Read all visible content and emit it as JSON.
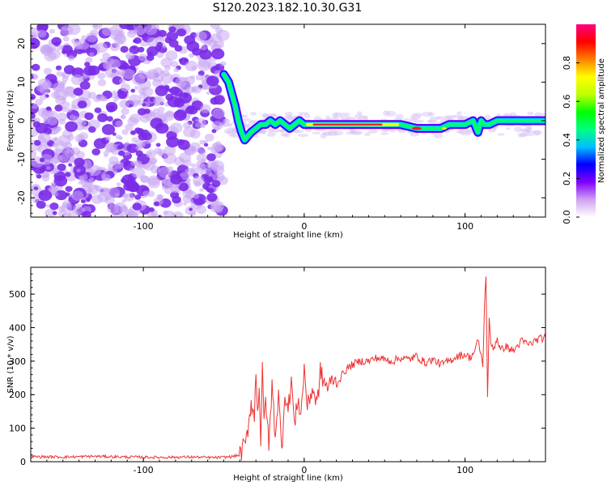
{
  "title": "S120.2023.182.10.30.G31",
  "chart_data": [
    {
      "type": "heatmap",
      "id": "spectrogram",
      "xlabel": "Height of straight line (km)",
      "ylabel": "Frequency (Hz)",
      "xlim": [
        -170,
        150
      ],
      "ylim": [
        -25,
        25
      ],
      "xticks": [
        -100,
        0,
        100
      ],
      "yticks": [
        -20,
        -10,
        0,
        10,
        20
      ],
      "ytick_labels": [
        "-20",
        "-10",
        "0",
        "10",
        "20"
      ],
      "grid": false,
      "colorbar": {
        "label": "Normalized spectral amplitude",
        "range": [
          0.0,
          1.0
        ],
        "ticks": [
          0.0,
          0.2,
          0.4,
          0.6,
          0.8
        ],
        "tick_labels": [
          "0.0",
          "0.2",
          "0.4",
          "0.6",
          "0.8"
        ],
        "colormap": [
          "#ffffff",
          "#d0a0f0",
          "#8000ff",
          "#0000ff",
          "#00c0ff",
          "#00ff80",
          "#00ff00",
          "#c0ff00",
          "#ffff00",
          "#ff8000",
          "#ff0000",
          "#ff0080"
        ]
      },
      "ridge": {
        "x": [
          -50,
          -47,
          -45,
          -43,
          -41,
          -39,
          -37,
          -35,
          -33,
          -30,
          -27,
          -24,
          -21,
          -18,
          -15,
          -12,
          -9,
          -6,
          -3,
          0,
          5,
          10,
          20,
          30,
          40,
          50,
          60,
          70,
          80,
          85,
          90,
          95,
          100,
          105,
          108,
          110,
          112,
          115,
          120,
          130,
          140,
          150
        ],
        "y": [
          12,
          10,
          7,
          4,
          0,
          -3,
          -5,
          -4,
          -3,
          -2,
          -1,
          -1,
          0,
          -1,
          0,
          -1,
          -2,
          -1,
          0,
          -1,
          -1,
          -1,
          -1,
          -1,
          -1,
          -1,
          -1,
          -2,
          -2,
          -2,
          -1,
          -1,
          -1,
          0,
          -3,
          0,
          -1,
          -1,
          0,
          0,
          0,
          0
        ],
        "peak_x": [
          0,
          60
        ]
      }
    },
    {
      "type": "line",
      "id": "snr",
      "xlabel": "Height of straight line (km)",
      "ylabel": "SNR (10 * v/v)",
      "xlim": [
        -170,
        150
      ],
      "ylim": [
        0,
        580
      ],
      "xticks": [
        -100,
        0,
        100
      ],
      "yticks": [
        0,
        100,
        200,
        300,
        400,
        500
      ],
      "grid": false,
      "series": [
        {
          "color": "#ee3333",
          "x": [
            -170,
            -150,
            -130,
            -110,
            -90,
            -70,
            -55,
            -45,
            -40,
            -36,
            -33,
            -31,
            -30,
            -29,
            -28,
            -27,
            -26,
            -25,
            -24,
            -22,
            -20,
            -18,
            -16,
            -14,
            -12,
            -10,
            -8,
            -6,
            -4,
            -2,
            0,
            2,
            5,
            8,
            10,
            12,
            15,
            18,
            20,
            25,
            30,
            35,
            40,
            45,
            50,
            55,
            60,
            65,
            70,
            75,
            80,
            85,
            90,
            95,
            100,
            103,
            106,
            108,
            110,
            111,
            112,
            113,
            114,
            115,
            116,
            118,
            120,
            122,
            125,
            130,
            135,
            140,
            145,
            150
          ],
          "y": [
            15,
            14,
            16,
            14,
            13,
            14,
            12,
            15,
            20,
            60,
            180,
            130,
            280,
            150,
            230,
            60,
            270,
            110,
            200,
            40,
            230,
            80,
            200,
            30,
            210,
            150,
            250,
            100,
            190,
            140,
            280,
            160,
            220,
            170,
            270,
            240,
            220,
            250,
            230,
            270,
            290,
            300,
            300,
            310,
            305,
            300,
            310,
            305,
            315,
            295,
            305,
            290,
            300,
            315,
            320,
            310,
            330,
            360,
            320,
            280,
            450,
            560,
            190,
            420,
            350,
            340,
            370,
            330,
            345,
            330,
            360,
            350,
            365,
            370
          ]
        }
      ]
    }
  ]
}
